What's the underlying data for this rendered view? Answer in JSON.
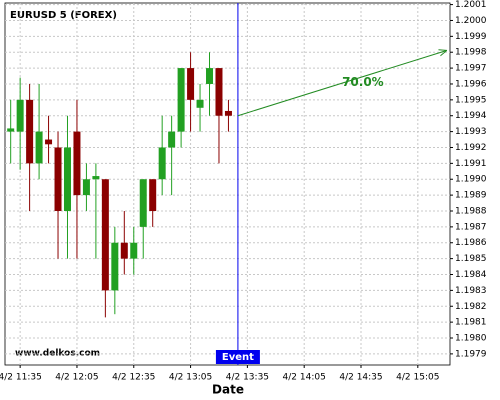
{
  "chart_data": {
    "type": "candlestick",
    "title": "EURUSD 5 (FOREX)",
    "watermark": "www.delkos.com",
    "x_label": "Date",
    "x": [
      "4/2 11:30",
      "4/2 11:35",
      "4/2 11:40",
      "4/2 11:45",
      "4/2 11:50",
      "4/2 11:55",
      "4/2 12:00",
      "4/2 12:05",
      "4/2 12:10",
      "4/2 12:15",
      "4/2 12:20",
      "4/2 12:25",
      "4/2 12:30",
      "4/2 12:35",
      "4/2 12:40",
      "4/2 12:45",
      "4/2 12:50",
      "4/2 12:55",
      "4/2 13:00",
      "4/2 13:05",
      "4/2 13:10",
      "4/2 13:15",
      "4/2 13:20",
      "4/2 13:25"
    ],
    "open": [
      1.1993,
      1.1993,
      1.1995,
      1.1991,
      1.19925,
      1.1992,
      1.1988,
      1.1993,
      1.1989,
      1.199,
      1.199,
      1.1983,
      1.1986,
      1.1985,
      1.1987,
      1.199,
      1.199,
      1.1992,
      1.1993,
      1.1997,
      1.19945,
      1.1996,
      1.1997,
      1.19943
    ],
    "high": [
      1.1995,
      1.19964,
      1.1996,
      1.1996,
      1.1994,
      1.1993,
      1.1994,
      1.1995,
      1.1991,
      1.1991,
      1.199,
      1.1987,
      1.1988,
      1.1987,
      1.199,
      1.199,
      1.1994,
      1.1994,
      1.1997,
      1.1998,
      1.1996,
      1.1998,
      1.1997,
      1.1995
    ],
    "low": [
      1.1991,
      1.19906,
      1.1988,
      1.199,
      1.1991,
      1.1985,
      1.1985,
      1.1985,
      1.1988,
      1.1985,
      1.19813,
      1.19815,
      1.1984,
      1.1984,
      1.1985,
      1.1987,
      1.1989,
      1.1989,
      1.1992,
      1.1993,
      1.1993,
      1.1994,
      1.1991,
      1.1993
    ],
    "close": [
      1.19932,
      1.1995,
      1.1991,
      1.1993,
      1.19922,
      1.1988,
      1.1992,
      1.1989,
      1.199,
      1.19902,
      1.1983,
      1.1986,
      1.1985,
      1.1986,
      1.199,
      1.1988,
      1.1992,
      1.1993,
      1.1997,
      1.1995,
      1.1995,
      1.1997,
      1.1994,
      1.1994
    ],
    "up_color": "#22a022",
    "down_color": "#8b0000",
    "event": {
      "x": "4/2 13:30",
      "label": "Event",
      "color": "#0000ee"
    },
    "projection": {
      "start": 1.1994,
      "end": 1.19981,
      "end_x": "4/2 15:20",
      "label": "70.0%",
      "color": "#228b22"
    },
    "xlim": [
      "4/2 11:27",
      "4/2 15:22"
    ],
    "xticks": [
      "4/2 11:35",
      "4/2 12:05",
      "4/2 12:35",
      "4/2 13:05",
      "4/2 13:35",
      "4/2 14:05",
      "4/2 14:35",
      "4/2 15:05"
    ],
    "ylim": [
      1.19783,
      1.20011
    ],
    "yticks": [
      1.1979,
      {
        "value": 1.198,
        "label": "1.1980"
      },
      1.1981,
      1.1982,
      1.1983,
      1.1984,
      1.1985,
      1.1986,
      1.1987,
      1.1988,
      1.1989,
      {
        "value": 1.199,
        "label": "1.1990"
      },
      1.1991,
      1.1992,
      1.1993,
      1.1994,
      1.1995,
      1.1996,
      1.1997,
      1.1998,
      1.1999,
      {
        "value": 1.2,
        "label": "1.2000"
      },
      1.2001
    ],
    "grid": true
  }
}
